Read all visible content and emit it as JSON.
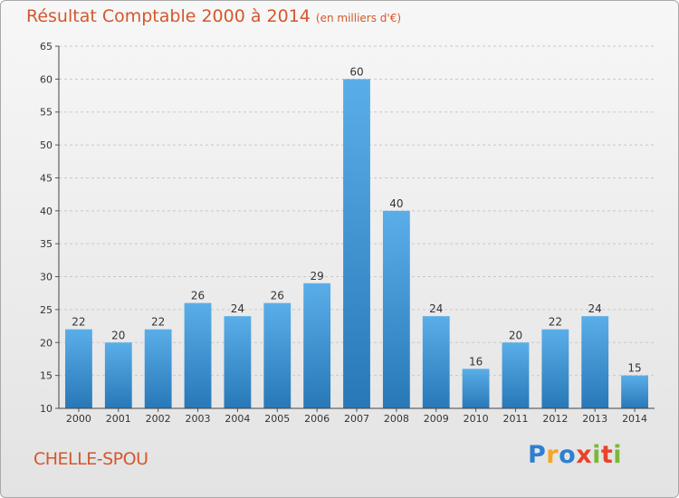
{
  "chart_data": {
    "type": "bar",
    "title": "Résultat Comptable 2000 à 2014",
    "unit_label": "(en milliers d'€)",
    "xlabel": "",
    "ylabel": "",
    "ylim": [
      10,
      65
    ],
    "yticks": [
      10,
      15,
      20,
      25,
      30,
      35,
      40,
      45,
      50,
      55,
      60,
      65
    ],
    "grid": true,
    "categories": [
      "2000",
      "2001",
      "2002",
      "2003",
      "2004",
      "2005",
      "2006",
      "2007",
      "2008",
      "2009",
      "2010",
      "2011",
      "2012",
      "2013",
      "2014"
    ],
    "values": [
      22,
      20,
      22,
      26,
      24,
      26,
      29,
      60,
      40,
      24,
      16,
      20,
      22,
      24,
      15
    ]
  },
  "commune": "CHELLE-SPOU",
  "logo": {
    "letters": [
      "P",
      "r",
      "o",
      "x",
      "i",
      "t",
      "i"
    ],
    "colors": [
      "#2f7fd1",
      "#f5a623",
      "#2f7fd1",
      "#e8432c",
      "#7bb83a",
      "#e8432c",
      "#7bb83a"
    ]
  },
  "colors": {
    "title": "#d4572c",
    "bar_top": "#5aaee8",
    "bar_bottom": "#2878b8",
    "grid": "#c9c9c9"
  }
}
